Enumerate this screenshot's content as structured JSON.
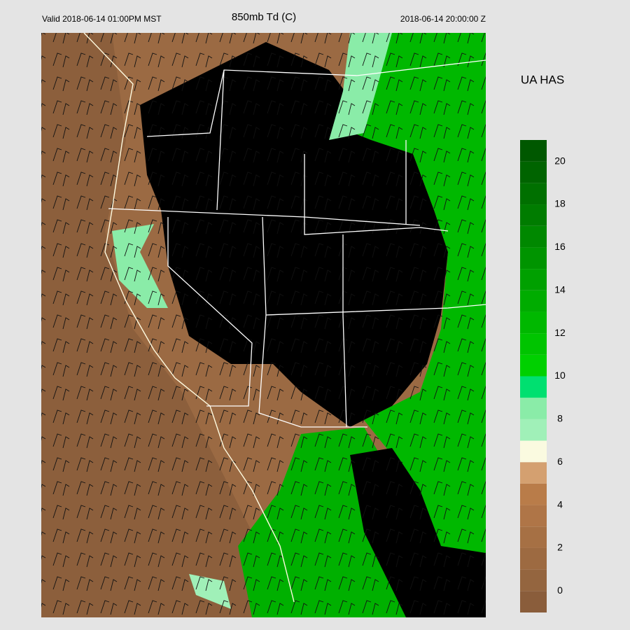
{
  "header": {
    "valid": "Valid 2018-06-14 01:00PM MST",
    "title": "850mb Td (C)",
    "time": "2018-06-14  20:00:00 Z"
  },
  "product": "UA HAS",
  "colorbar": {
    "range": [
      -1,
      21
    ],
    "ticks": [
      0,
      2,
      4,
      6,
      8,
      10,
      12,
      14,
      16,
      18,
      20
    ],
    "colors": [
      "#8a5d3b",
      "#94653f",
      "#9d6a41",
      "#a67044",
      "#af7547",
      "#b97c49",
      "#d4a070",
      "#fafae0",
      "#a0f0b8",
      "#8aeca8",
      "#00e070",
      "#00d000",
      "#00c400",
      "#00b800",
      "#00ac00",
      "#00a000",
      "#009400",
      "#008800",
      "#007c00",
      "#007000",
      "#006400",
      "#005800"
    ]
  }
}
